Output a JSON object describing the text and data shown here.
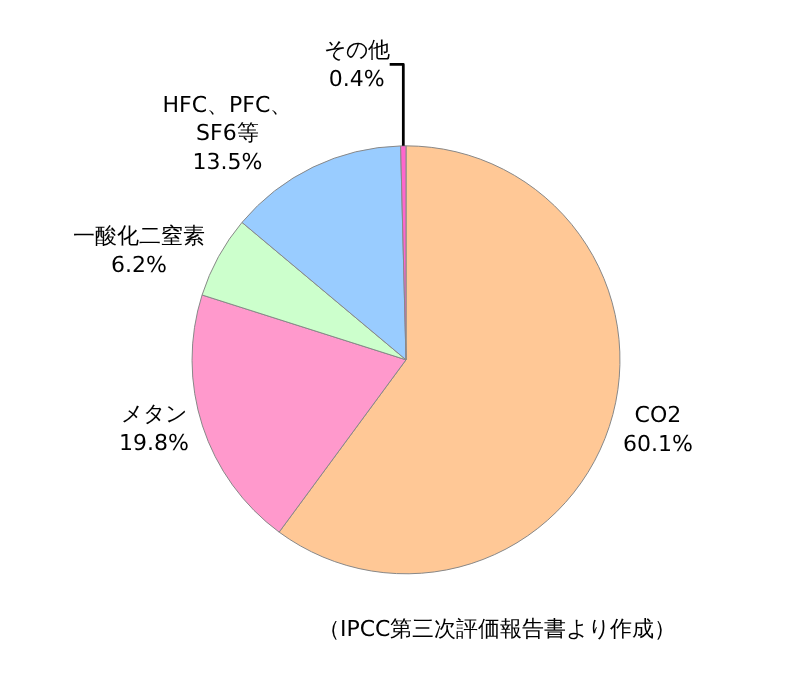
{
  "chart_data": {
    "type": "pie",
    "categories": [
      "CO2",
      "メタン",
      "一酸化二窒素",
      "HFC、PFC、\nSF6等",
      "その他"
    ],
    "values": [
      60.1,
      19.8,
      6.2,
      13.5,
      0.4
    ],
    "value_labels": [
      "60.1%",
      "19.8%",
      "6.2%",
      "13.5%",
      "0.4%"
    ],
    "colors": [
      "#ffc896",
      "#ff99cc",
      "#ccffcc",
      "#99ccff",
      "#ff66cc"
    ],
    "annotations": [
      "（IPCC第三次評価報告書より作成）"
    ]
  }
}
